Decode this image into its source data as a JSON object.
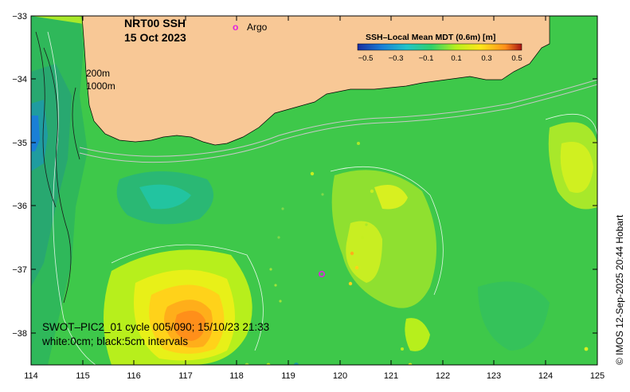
{
  "map": {
    "title": "NRT00 SSH",
    "date": "15 Oct 2023",
    "legend_marker": "o",
    "legend_label": "Argo",
    "colorbar_title": "SSH–Local Mean MDT (0.6m) [m]",
    "colorbar_ticks": [
      "−0.5",
      "−0.3",
      "−0.1",
      "0.1",
      "0.3",
      "0.5"
    ],
    "colorbar_colors": [
      "#1a2ea0",
      "#1a7fd6",
      "#22c4c9",
      "#2fd06a",
      "#b7ef1c",
      "#ffe61a",
      "#ff8f1a",
      "#a81414"
    ],
    "depth_label_1": "200m",
    "depth_label_2": "1000m",
    "swot_line": "SWOT–PIC2_01 cycle 005/090; 15/10/23 21:33",
    "contour_note": "white:0cm; black:5cm intervals",
    "copyright": "© IMOS 12-Sep-2025 20:44 Hobart",
    "x_ticks": [
      "114",
      "115",
      "116",
      "117",
      "118",
      "119",
      "120",
      "121",
      "122",
      "123",
      "124",
      "125"
    ],
    "y_ticks": [
      "−33",
      "−34",
      "−35",
      "−36",
      "−37",
      "−38"
    ],
    "argo_color": "#e020e0",
    "land_color": "#f8c896"
  }
}
